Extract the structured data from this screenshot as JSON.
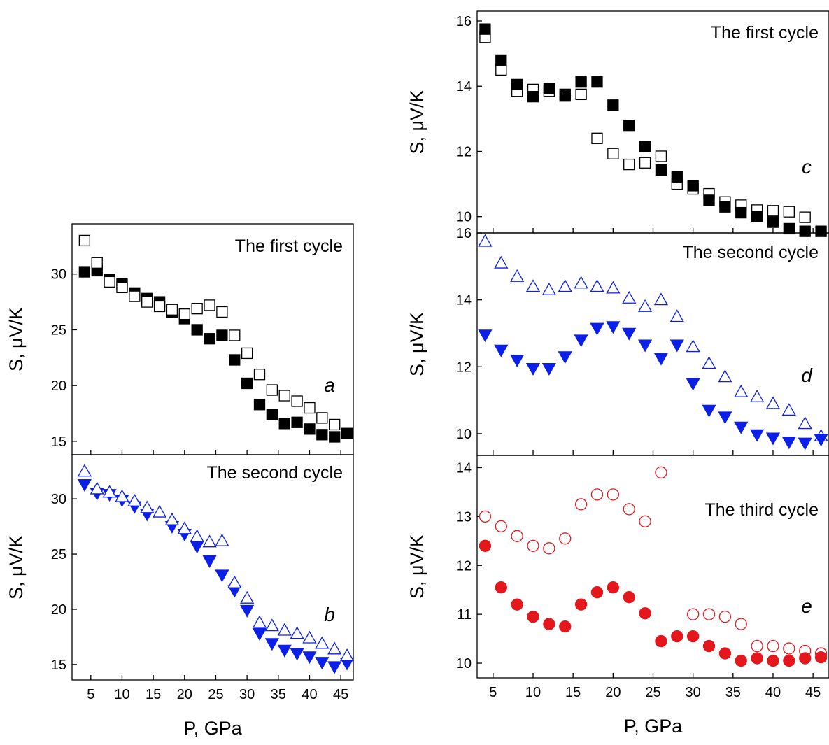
{
  "chart_data": [
    {
      "id": "a",
      "type": "scatter",
      "panel_letter": "a",
      "cycle_label": "The first cycle",
      "ylabel": "S, μV/K",
      "xlabel": "",
      "xlim": [
        2,
        47
      ],
      "ylim": [
        13.8,
        34.5
      ],
      "xticks": [],
      "yticks": [
        15,
        20,
        25,
        30
      ],
      "grid": false,
      "series": [
        {
          "marker": "square",
          "filled": true,
          "color": "#000000",
          "x": [
            4,
            6,
            8,
            10,
            12,
            14,
            16,
            18,
            20,
            22,
            24,
            26,
            28,
            30,
            32,
            34,
            36,
            38,
            40,
            42,
            44,
            46
          ],
          "y": [
            30.2,
            30.3,
            29.5,
            29.1,
            28.3,
            27.8,
            27.5,
            26.6,
            26.0,
            25.0,
            24.2,
            24.5,
            22.3,
            20.2,
            18.3,
            17.4,
            16.6,
            16.7,
            16.1,
            15.6,
            15.4,
            15.7
          ]
        },
        {
          "marker": "square",
          "filled": false,
          "color": "#000000",
          "x": [
            4,
            6,
            8,
            10,
            12,
            14,
            16,
            18,
            20,
            22,
            24,
            26,
            28,
            30,
            32,
            34,
            36,
            38,
            40,
            42,
            44
          ],
          "y": [
            33.0,
            31.0,
            29.3,
            28.8,
            28.0,
            27.5,
            27.1,
            26.8,
            26.4,
            26.9,
            27.2,
            26.6,
            24.5,
            22.9,
            21.0,
            19.6,
            19.1,
            18.6,
            18.0,
            17.1,
            16.5
          ]
        }
      ]
    },
    {
      "id": "b",
      "type": "scatter",
      "panel_letter": "b",
      "cycle_label": "The second cycle",
      "ylabel": "S, μV/K",
      "xlabel": "P, GPa",
      "xlim": [
        2,
        47
      ],
      "ylim": [
        13.6,
        34.0
      ],
      "xticks": [
        5,
        10,
        15,
        20,
        25,
        30,
        35,
        40,
        45
      ],
      "yticks": [
        15,
        20,
        25,
        30
      ],
      "grid": false,
      "series": [
        {
          "marker": "triangle-down",
          "filled": true,
          "color": "#0b1fe6",
          "x": [
            4,
            6,
            8,
            10,
            12,
            14,
            18,
            20,
            22,
            24,
            26,
            28,
            30,
            32,
            34,
            36,
            38,
            40,
            42,
            44,
            46
          ],
          "y": [
            31.3,
            30.5,
            30.4,
            29.9,
            29.3,
            28.6,
            27.5,
            26.8,
            25.7,
            24.4,
            23.1,
            21.7,
            19.9,
            17.8,
            16.9,
            16.3,
            16.0,
            15.7,
            15.2,
            14.8,
            15.1
          ]
        },
        {
          "marker": "triangle-up",
          "filled": false,
          "color": "#0b1fe6",
          "x": [
            4,
            6,
            8,
            10,
            12,
            14,
            16,
            18,
            20,
            22,
            24,
            26,
            28,
            30,
            32,
            34,
            36,
            38,
            40,
            42,
            44,
            46
          ],
          "y": [
            32.5,
            30.9,
            30.6,
            30.2,
            29.8,
            29.2,
            28.8,
            28.1,
            27.3,
            26.6,
            26.1,
            26.2,
            22.4,
            21.0,
            18.8,
            18.5,
            18.1,
            17.8,
            17.4,
            16.9,
            16.4,
            15.8
          ]
        }
      ]
    },
    {
      "id": "c",
      "type": "scatter",
      "panel_letter": "c",
      "cycle_label": "The first cycle",
      "ylabel": "S, μV/K",
      "xlabel": "",
      "xlim": [
        3,
        47
      ],
      "ylim": [
        9.5,
        16.3
      ],
      "xticks": [],
      "yticks": [
        10,
        12,
        14,
        16
      ],
      "grid": false,
      "series": [
        {
          "marker": "square",
          "filled": false,
          "color": "#000000",
          "x": [
            4,
            6,
            8,
            10,
            12,
            14,
            16,
            18,
            20,
            22,
            24,
            26,
            28,
            30,
            32,
            34,
            36,
            38,
            40,
            42,
            44
          ],
          "y": [
            15.5,
            14.5,
            13.85,
            13.9,
            13.85,
            13.75,
            13.75,
            12.4,
            11.93,
            11.6,
            11.65,
            11.85,
            11.0,
            10.85,
            10.7,
            10.45,
            10.35,
            10.2,
            10.18,
            10.15,
            9.98
          ]
        },
        {
          "marker": "square",
          "filled": true,
          "color": "#000000",
          "x": [
            4,
            6,
            8,
            10,
            12,
            14,
            16,
            18,
            20,
            22,
            24,
            26,
            28,
            30,
            32,
            34,
            36,
            38,
            40,
            42,
            44,
            46
          ],
          "y": [
            15.75,
            14.8,
            14.05,
            13.68,
            13.93,
            13.7,
            14.13,
            14.13,
            13.42,
            12.8,
            12.15,
            11.43,
            11.22,
            10.95,
            10.5,
            10.3,
            10.12,
            10.0,
            9.83,
            9.63,
            9.55,
            9.55
          ]
        }
      ]
    },
    {
      "id": "d",
      "type": "scatter",
      "panel_letter": "d",
      "cycle_label": "The second cycle",
      "ylabel": "S, μV/K",
      "xlabel": "",
      "xlim": [
        3,
        47
      ],
      "ylim": [
        9.35,
        16.0
      ],
      "xticks": [],
      "yticks": [
        10,
        12,
        14,
        16
      ],
      "grid": false,
      "series": [
        {
          "marker": "triangle-up",
          "filled": false,
          "color": "#0b1fe6",
          "x": [
            4,
            6,
            8,
            10,
            12,
            14,
            16,
            18,
            20,
            22,
            24,
            26,
            28,
            30,
            32,
            34,
            36,
            38,
            40,
            42,
            44,
            46
          ],
          "y": [
            15.75,
            15.1,
            14.7,
            14.4,
            14.3,
            14.4,
            14.5,
            14.4,
            14.35,
            14.05,
            13.8,
            14.0,
            13.5,
            12.6,
            12.1,
            11.7,
            11.25,
            11.1,
            10.9,
            10.7,
            10.3,
            9.93
          ]
        },
        {
          "marker": "triangle-down",
          "filled": true,
          "color": "#0b1fe6",
          "x": [
            4,
            6,
            8,
            10,
            12,
            14,
            16,
            18,
            20,
            22,
            24,
            26,
            28,
            30,
            32,
            34,
            36,
            38,
            40,
            42,
            44,
            46
          ],
          "y": [
            12.95,
            12.5,
            12.2,
            11.95,
            11.95,
            12.3,
            12.8,
            13.15,
            13.2,
            13.0,
            12.65,
            12.25,
            12.65,
            11.5,
            10.7,
            10.5,
            10.2,
            9.97,
            9.87,
            9.75,
            9.72,
            9.83
          ]
        }
      ]
    },
    {
      "id": "e",
      "type": "scatter",
      "panel_letter": "e",
      "cycle_label": "The third cycle",
      "ylabel": "S, μV/K",
      "xlabel": "P, GPa",
      "xlim": [
        3,
        47
      ],
      "ylim": [
        9.7,
        14.25
      ],
      "xticks": [
        5,
        10,
        15,
        20,
        25,
        30,
        35,
        40,
        45
      ],
      "yticks": [
        10,
        11,
        12,
        13,
        14
      ],
      "grid": false,
      "series": [
        {
          "marker": "circle",
          "filled": false,
          "color": "#e3171c",
          "x": [
            4,
            6,
            8,
            10,
            12,
            14,
            16,
            18,
            20,
            22,
            24,
            26,
            30,
            32,
            34,
            36,
            38,
            40,
            42,
            44,
            46
          ],
          "y": [
            13.0,
            12.8,
            12.6,
            12.4,
            12.35,
            12.55,
            13.25,
            13.45,
            13.45,
            13.15,
            12.9,
            13.9,
            11.0,
            11.0,
            10.95,
            10.8,
            10.35,
            10.35,
            10.3,
            10.25,
            10.2
          ]
        },
        {
          "marker": "circle",
          "filled": true,
          "color": "#e3171c",
          "x": [
            4,
            6,
            8,
            10,
            12,
            14,
            16,
            18,
            20,
            22,
            24,
            26,
            28,
            30,
            32,
            34,
            36,
            38,
            40,
            42,
            44,
            46
          ],
          "y": [
            12.4,
            11.55,
            11.2,
            10.95,
            10.8,
            10.75,
            11.2,
            11.45,
            11.55,
            11.35,
            11.02,
            10.45,
            10.55,
            10.55,
            10.35,
            10.2,
            10.05,
            10.1,
            10.05,
            10.05,
            10.1,
            10.12
          ]
        }
      ]
    }
  ]
}
